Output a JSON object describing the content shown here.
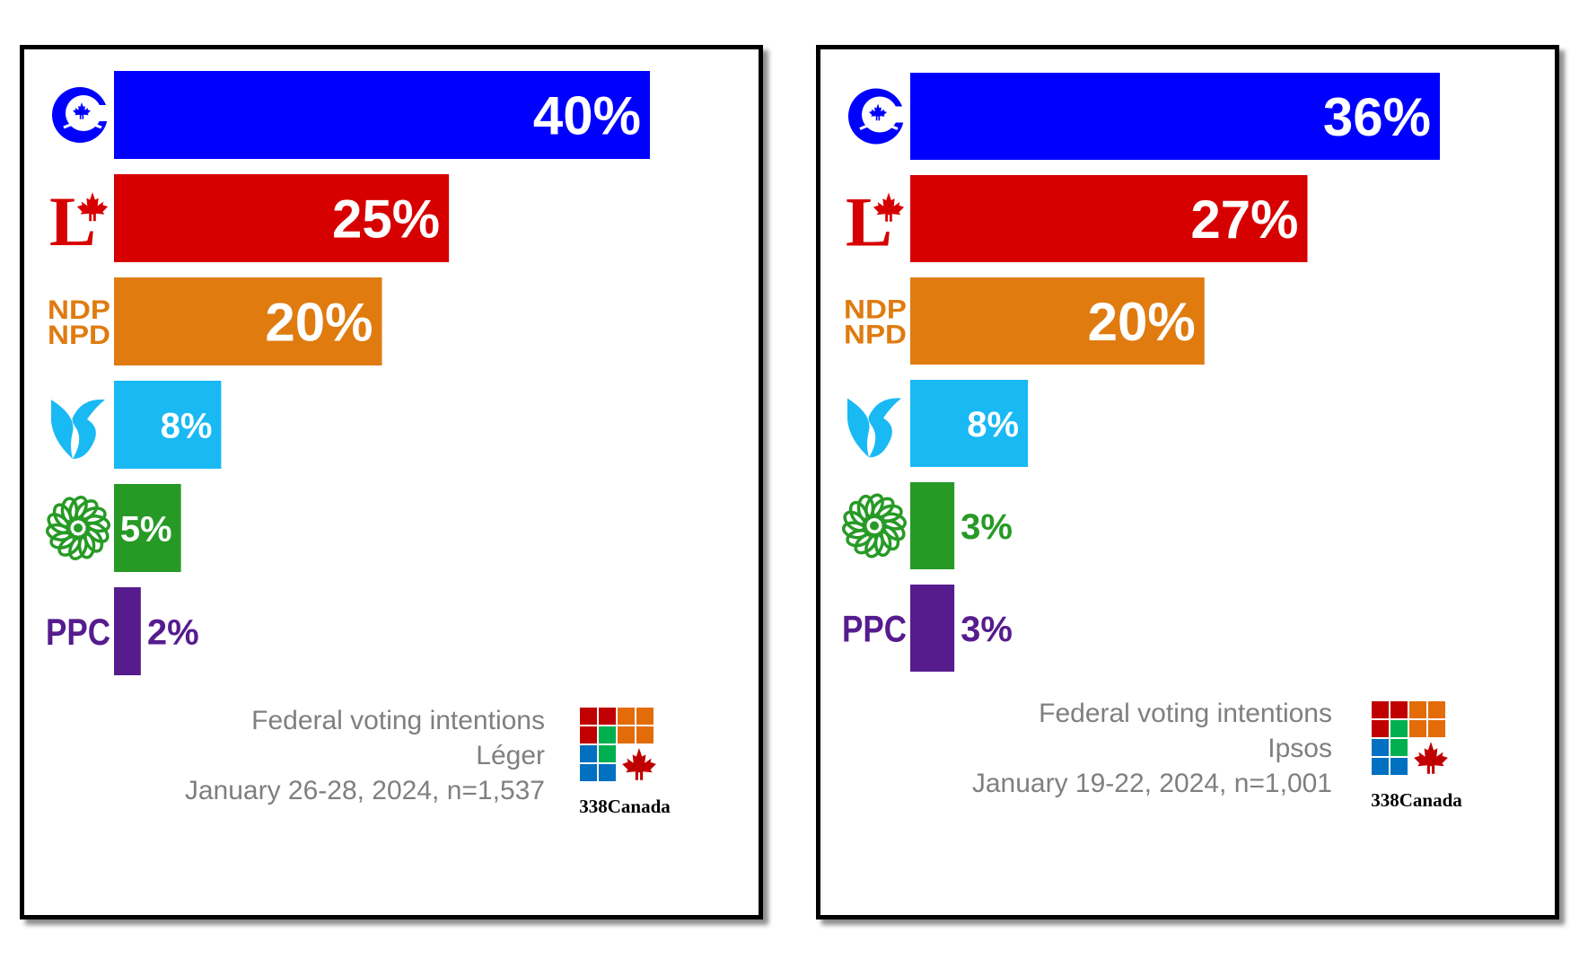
{
  "colors": {
    "CPC": "#0000ff",
    "LPC": "#d70000",
    "NDP": "#e07b10",
    "BQ": "#19b9f4",
    "GPC": "#279a26",
    "PPC": "#561c8e",
    "caption": "#7f7f7f",
    "logo_grid": [
      "#c00000",
      "#c00000",
      "#e36c09",
      "#e36c09",
      "#c00000",
      "#00b050",
      "#e36c09",
      "#e36c09",
      "#0070c0",
      "#00b050",
      "#ffffff",
      "#ffffff",
      "#0070c0",
      "#0070c0",
      "#ffffff",
      "#ffffff"
    ]
  },
  "parties": [
    {
      "key": "CPC",
      "icon": "cpc-logo-icon"
    },
    {
      "key": "LPC",
      "icon": "liberal-logo-icon",
      "logo_text": "L"
    },
    {
      "key": "NDP",
      "icon": "ndp-logo-icon",
      "logo_text": [
        "NDP",
        "NPD"
      ]
    },
    {
      "key": "BQ",
      "icon": "bloc-logo-icon"
    },
    {
      "key": "GPC",
      "icon": "green-logo-icon"
    },
    {
      "key": "PPC",
      "icon": "ppc-logo-icon",
      "logo_text": "PPC"
    }
  ],
  "chart_data": [
    {
      "type": "bar",
      "orientation": "horizontal",
      "categories": [
        "CPC",
        "LPC",
        "NDP",
        "BQ",
        "GPC",
        "PPC"
      ],
      "values": [
        40,
        25,
        20,
        8,
        5,
        2
      ],
      "data_labels": [
        "40%",
        "25%",
        "20%",
        "8%",
        "5%",
        "2%"
      ],
      "xlim": [
        0,
        40
      ],
      "grid": false,
      "caption": {
        "line1": "Federal voting intentions",
        "line2": "Léger",
        "line3": "January 26-28, 2024, n=1,537"
      },
      "brand": "338Canada"
    },
    {
      "type": "bar",
      "orientation": "horizontal",
      "categories": [
        "CPC",
        "LPC",
        "NDP",
        "BQ",
        "GPC",
        "PPC"
      ],
      "values": [
        36,
        27,
        20,
        8,
        3,
        3
      ],
      "data_labels": [
        "36%",
        "27%",
        "20%",
        "8%",
        "3%",
        "3%"
      ],
      "xlim": [
        0,
        36
      ],
      "grid": false,
      "caption": {
        "line1": "Federal voting intentions",
        "line2": "Ipsos",
        "line3": "January 19-22, 2024, n=1,001"
      },
      "brand": "338Canada"
    }
  ]
}
